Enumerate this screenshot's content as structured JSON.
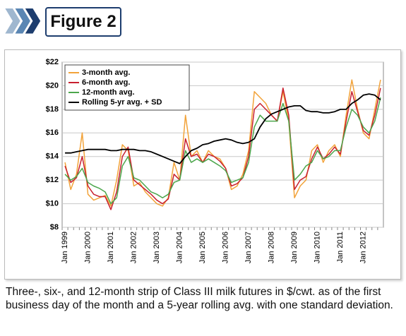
{
  "figure_label": "Figure 2",
  "caption": "Three-, six-, and 12-month strip of Class III milk futures in $/cwt. as of the first business day of the month and a 5-year rolling avg. with one standard deviation.",
  "chart_data": {
    "type": "line",
    "categories": [
      "Jan 1999",
      null,
      null,
      null,
      "Jan 2000",
      null,
      null,
      null,
      "Jan 2001",
      null,
      null,
      null,
      "Jan 2002",
      null,
      null,
      null,
      "Jan 2003",
      null,
      null,
      null,
      "Jan 2004",
      null,
      null,
      null,
      "Jan 2005",
      null,
      null,
      null,
      "Jan 2006",
      null,
      null,
      null,
      "Jan 2007",
      null,
      null,
      null,
      "Jan 2008",
      null,
      null,
      null,
      "Jan 2009",
      null,
      null,
      null,
      "Jan 2010",
      null,
      null,
      null,
      "Jan 2011",
      null,
      null,
      null,
      "Jan 2012",
      null,
      null,
      null
    ],
    "series": [
      {
        "name": "3-month avg.",
        "color": "#f2a33a",
        "values": [
          13.5,
          11.2,
          12.5,
          16.0,
          10.8,
          10.3,
          10.5,
          10.7,
          9.8,
          12.0,
          15.0,
          14.5,
          11.5,
          11.8,
          11.0,
          10.5,
          10.0,
          9.8,
          10.5,
          13.5,
          12.0,
          17.5,
          14.0,
          14.5,
          13.5,
          14.5,
          14.0,
          13.8,
          13.0,
          11.2,
          11.5,
          12.5,
          14.5,
          19.5,
          19.0,
          18.5,
          17.5,
          17.0,
          19.5,
          17.0,
          10.5,
          11.5,
          12.0,
          14.5,
          15.0,
          13.5,
          14.5,
          15.0,
          14.0,
          17.5,
          20.5,
          18.0,
          16.0,
          15.5,
          18.0,
          20.5
        ]
      },
      {
        "name": "6-month avg.",
        "color": "#c8202f",
        "values": [
          13.2,
          11.8,
          12.2,
          14.0,
          11.5,
          10.8,
          10.6,
          10.6,
          9.5,
          11.0,
          14.0,
          14.8,
          12.0,
          11.6,
          11.2,
          10.8,
          10.3,
          10.0,
          10.4,
          12.5,
          12.0,
          15.5,
          14.0,
          14.2,
          13.5,
          14.2,
          14.0,
          13.6,
          13.0,
          11.5,
          11.7,
          12.2,
          14.0,
          18.0,
          18.5,
          18.0,
          17.5,
          17.0,
          19.8,
          17.5,
          11.2,
          12.0,
          12.3,
          13.8,
          14.8,
          13.8,
          14.2,
          14.8,
          14.2,
          17.0,
          19.5,
          17.8,
          16.2,
          15.8,
          17.5,
          19.8
        ]
      },
      {
        "name": "12-month avg.",
        "color": "#4ca64c",
        "values": [
          12.5,
          12.0,
          12.3,
          13.0,
          11.8,
          11.5,
          11.3,
          11.0,
          10.0,
          10.5,
          13.2,
          14.0,
          12.2,
          12.0,
          11.5,
          11.0,
          10.8,
          10.5,
          10.8,
          11.8,
          12.0,
          14.5,
          13.5,
          13.8,
          13.5,
          13.8,
          13.5,
          13.2,
          12.8,
          11.8,
          12.0,
          12.2,
          13.5,
          16.5,
          17.5,
          17.0,
          17.0,
          17.0,
          18.5,
          17.0,
          12.0,
          12.5,
          13.2,
          13.5,
          14.5,
          13.8,
          14.0,
          14.5,
          14.5,
          16.5,
          18.0,
          17.5,
          16.5,
          16.0,
          17.0,
          19.0
        ]
      },
      {
        "name": "Rolling 5-yr avg. + SD",
        "color": "#000000",
        "values": [
          14.3,
          14.3,
          14.4,
          14.5,
          14.6,
          14.6,
          14.6,
          14.6,
          14.5,
          14.5,
          14.6,
          14.6,
          14.6,
          14.5,
          14.5,
          14.4,
          14.2,
          14.0,
          13.8,
          13.6,
          13.4,
          14.0,
          14.5,
          14.7,
          15.0,
          15.1,
          15.3,
          15.4,
          15.5,
          15.4,
          15.2,
          15.1,
          15.2,
          15.5,
          16.5,
          17.2,
          17.6,
          17.8,
          18.0,
          18.2,
          18.3,
          18.3,
          17.9,
          17.8,
          17.8,
          17.7,
          17.7,
          17.8,
          18.0,
          18.0,
          18.5,
          18.8,
          19.2,
          19.3,
          19.2,
          18.8
        ]
      }
    ],
    "ylim": [
      8,
      22
    ],
    "yticks": [
      {
        "value": 8,
        "label": "$8"
      },
      {
        "value": 10,
        "label": "$10"
      },
      {
        "value": 12,
        "label": "$12"
      },
      {
        "value": 14,
        "label": "$14"
      },
      {
        "value": 16,
        "label": "$16"
      },
      {
        "value": 18,
        "label": "$18"
      },
      {
        "value": 20,
        "label": "$20"
      },
      {
        "value": 22,
        "label": "$22"
      }
    ],
    "grid": true,
    "legend": "top-left"
  }
}
